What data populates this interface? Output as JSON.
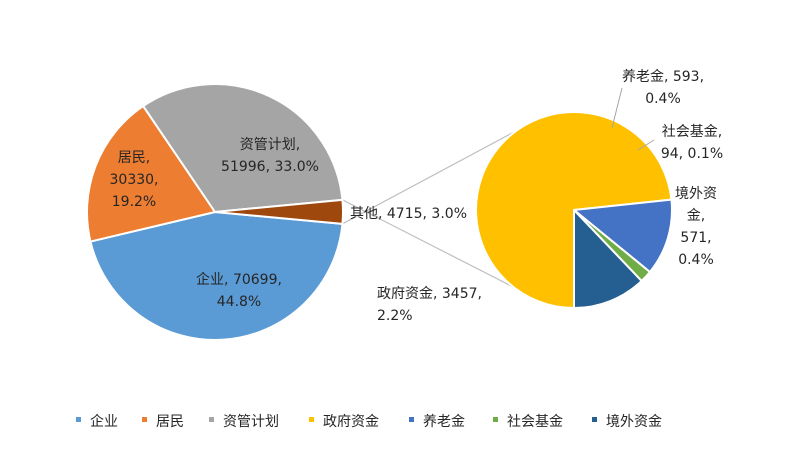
{
  "chart_data": {
    "type": "pie",
    "title": "",
    "main_pie": {
      "slices": [
        {
          "label": "企业",
          "value": 70699,
          "percent_text": "44.8%",
          "value_text": "70699",
          "color": "#5B9BD5"
        },
        {
          "label": "居民",
          "value": 30330,
          "percent_text": "19.2%",
          "value_text": "30330",
          "color": "#ED7D31"
        },
        {
          "label": "资管计划",
          "value": 51996,
          "percent_text": "33.0%",
          "value_text": "51996",
          "color": "#A5A5A5"
        },
        {
          "label": "其他",
          "value": 4715,
          "percent_text": "3.0%",
          "value_text": "4715",
          "color": "#9E480E"
        }
      ]
    },
    "secondary_pie": {
      "slices": [
        {
          "label": "政府资金",
          "value": 3457,
          "percent_text": "2.2%",
          "value_text": "3457",
          "color": "#FFC000"
        },
        {
          "label": "养老金",
          "value": 593,
          "percent_text": "0.4%",
          "value_text": "593",
          "color": "#4472C4"
        },
        {
          "label": "社会基金",
          "value": 94,
          "percent_text": "0.1%",
          "value_text": "94",
          "color": "#70AD47"
        },
        {
          "label": "境外资金",
          "value": 571,
          "percent_text": "0.4%",
          "value_text": "571",
          "color": "#255E91"
        }
      ]
    },
    "data_labels": [
      {
        "lines": [
          "企业, 70699,",
          "44.8%"
        ]
      },
      {
        "lines": [
          "居民,",
          "30330,",
          "19.2%"
        ]
      },
      {
        "lines": [
          "资管计划,",
          "51996, 33.0%"
        ]
      },
      {
        "lines": [
          "其他, 4715, 3.0%"
        ]
      },
      {
        "lines": [
          "政府资金, 3457,",
          "2.2%"
        ]
      },
      {
        "lines": [
          "养老金, 593,",
          "0.4%"
        ]
      },
      {
        "lines": [
          "社会基金,",
          "94, 0.1%"
        ]
      },
      {
        "lines": [
          "境外资",
          "金,",
          "571,",
          "0.4%"
        ]
      }
    ],
    "legend": {
      "placement": "bottom",
      "entries": [
        {
          "label": "企业",
          "color": "#5B9BD5"
        },
        {
          "label": "居民",
          "color": "#ED7D31"
        },
        {
          "label": "资管计划",
          "color": "#A5A5A5"
        },
        {
          "label": "政府资金",
          "color": "#FFC000"
        },
        {
          "label": "养老金",
          "color": "#4472C4"
        },
        {
          "label": "社会基金",
          "color": "#70AD47"
        },
        {
          "label": "境外资金",
          "color": "#255E91"
        }
      ]
    }
  }
}
